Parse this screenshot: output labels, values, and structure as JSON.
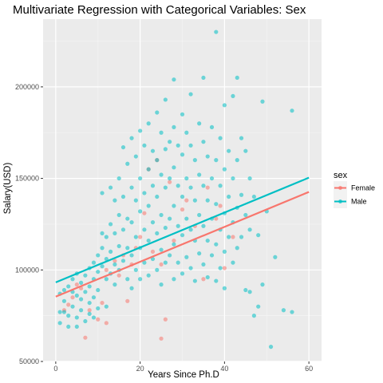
{
  "chart_data": {
    "type": "scatter",
    "title": "Multivariate Regression with Categorical Variables: Sex",
    "xlabel": "Years Since Ph.D",
    "ylabel": "Salary(USD)",
    "xlim": [
      -3,
      63
    ],
    "ylim": [
      50000,
      237000
    ],
    "x_ticks": [
      0,
      20,
      40,
      60
    ],
    "y_ticks": [
      50000,
      100000,
      150000,
      200000
    ],
    "x_tick_labels": [
      "0",
      "20",
      "40",
      "60"
    ],
    "y_tick_labels": [
      "50000",
      "100000",
      "150000",
      "200000"
    ],
    "grid": true,
    "legend": {
      "title": "sex",
      "position": "right",
      "entries": [
        "Female",
        "Male"
      ]
    },
    "series": [
      {
        "name": "Female",
        "color": "#F8766D",
        "fit_line": {
          "x": [
            0,
            60
          ],
          "y": [
            85400,
            142600
          ]
        },
        "points": [
          [
            2,
            78000
          ],
          [
            3,
            81000
          ],
          [
            4,
            85000
          ],
          [
            5,
            92000
          ],
          [
            6,
            90000
          ],
          [
            7,
            63000
          ],
          [
            8,
            78000
          ],
          [
            10,
            73000
          ],
          [
            11,
            82000
          ],
          [
            12,
            71000
          ],
          [
            12,
            100000
          ],
          [
            14,
            105000
          ],
          [
            15,
            97000
          ],
          [
            16,
            108000
          ],
          [
            17,
            83000
          ],
          [
            18,
            103000
          ],
          [
            19,
            112000
          ],
          [
            20,
            118000
          ],
          [
            21,
            131000
          ],
          [
            22,
            155000
          ],
          [
            23,
            110000
          ],
          [
            24,
            160000
          ],
          [
            25,
            103000
          ],
          [
            25,
            62500
          ],
          [
            26,
            73000
          ],
          [
            27,
            148000
          ],
          [
            28,
            116000
          ],
          [
            30,
            133000
          ],
          [
            31,
            138000
          ],
          [
            33,
            124000
          ],
          [
            35,
            95000
          ],
          [
            36,
            145000
          ],
          [
            38,
            128000
          ],
          [
            39,
            135000
          ],
          [
            40,
            101000
          ],
          [
            42,
            118000
          ]
        ]
      },
      {
        "name": "Male",
        "color": "#00BFC4",
        "fit_line": {
          "x": [
            0,
            60
          ],
          "y": [
            93200,
            150400
          ]
        },
        "points": [
          [
            1,
            87000
          ],
          [
            1,
            77000
          ],
          [
            1,
            71000
          ],
          [
            2,
            89000
          ],
          [
            2,
            83000
          ],
          [
            2,
            77000
          ],
          [
            3,
            91000
          ],
          [
            3,
            75000
          ],
          [
            3,
            69000
          ],
          [
            4,
            95000
          ],
          [
            4,
            88000
          ],
          [
            4,
            80000
          ],
          [
            5,
            98000
          ],
          [
            5,
            86000
          ],
          [
            5,
            74000
          ],
          [
            5,
            69000
          ],
          [
            6,
            93000
          ],
          [
            6,
            84000
          ],
          [
            6,
            78000
          ],
          [
            7,
            97000
          ],
          [
            7,
            88000
          ],
          [
            7,
            72000
          ],
          [
            8,
            101000
          ],
          [
            8,
            91000
          ],
          [
            8,
            82000
          ],
          [
            8,
            76000
          ],
          [
            9,
            104000
          ],
          [
            9,
            95000
          ],
          [
            9,
            85000
          ],
          [
            9,
            74000
          ],
          [
            10,
            108000
          ],
          [
            10,
            99000
          ],
          [
            10,
            89000
          ],
          [
            10,
            79000
          ],
          [
            11,
            120000
          ],
          [
            11,
            112000
          ],
          [
            11,
            102000
          ],
          [
            11,
            142000
          ],
          [
            12,
            118000
          ],
          [
            12,
            106000
          ],
          [
            12,
            95000
          ],
          [
            12,
            80000
          ],
          [
            13,
            145000
          ],
          [
            13,
            125000
          ],
          [
            13,
            110000
          ],
          [
            13,
            98000
          ],
          [
            14,
            138000
          ],
          [
            14,
            120000
          ],
          [
            14,
            103000
          ],
          [
            14,
            92000
          ],
          [
            15,
            150000
          ],
          [
            15,
            130000
          ],
          [
            15,
            113000
          ],
          [
            15,
            100000
          ],
          [
            16,
            167000
          ],
          [
            16,
            140000
          ],
          [
            16,
            122000
          ],
          [
            16,
            105000
          ],
          [
            17,
            158000
          ],
          [
            17,
            128000
          ],
          [
            17,
            112000
          ],
          [
            17,
            95000
          ],
          [
            18,
            172000
          ],
          [
            18,
            145000
          ],
          [
            18,
            126000
          ],
          [
            18,
            108000
          ],
          [
            18,
            90000
          ],
          [
            19,
            162000
          ],
          [
            19,
            138000
          ],
          [
            19,
            118000
          ],
          [
            19,
            100000
          ],
          [
            20,
            176000
          ],
          [
            20,
            150000
          ],
          [
            20,
            132000
          ],
          [
            20,
            112000
          ],
          [
            20,
            95000
          ],
          [
            21,
            168000
          ],
          [
            21,
            142000
          ],
          [
            21,
            122000
          ],
          [
            21,
            104000
          ],
          [
            22,
            180000
          ],
          [
            22,
            155000
          ],
          [
            22,
            135000
          ],
          [
            22,
            116000
          ],
          [
            22,
            97000
          ],
          [
            23,
            165000
          ],
          [
            23,
            146000
          ],
          [
            23,
            126000
          ],
          [
            23,
            106000
          ],
          [
            24,
            186000
          ],
          [
            24,
            160000
          ],
          [
            24,
            140000
          ],
          [
            24,
            120000
          ],
          [
            24,
            100000
          ],
          [
            25,
            175000
          ],
          [
            25,
            152000
          ],
          [
            25,
            130000
          ],
          [
            25,
            111000
          ],
          [
            25,
            92000
          ],
          [
            26,
            193000
          ],
          [
            26,
            166000
          ],
          [
            26,
            145000
          ],
          [
            26,
            123000
          ],
          [
            26,
            104000
          ],
          [
            27,
            170000
          ],
          [
            27,
            150000
          ],
          [
            27,
            128000
          ],
          [
            27,
            108000
          ],
          [
            28,
            204000
          ],
          [
            28,
            178000
          ],
          [
            28,
            156000
          ],
          [
            28,
            135000
          ],
          [
            28,
            114000
          ],
          [
            28,
            95000
          ],
          [
            29,
            168000
          ],
          [
            29,
            146000
          ],
          [
            29,
            124000
          ],
          [
            29,
            104000
          ],
          [
            30,
            185000
          ],
          [
            30,
            163000
          ],
          [
            30,
            140000
          ],
          [
            30,
            119000
          ],
          [
            30,
            98000
          ],
          [
            31,
            175000
          ],
          [
            31,
            150000
          ],
          [
            31,
            128000
          ],
          [
            31,
            107000
          ],
          [
            32,
            196000
          ],
          [
            32,
            168000
          ],
          [
            32,
            145000
          ],
          [
            32,
            122000
          ],
          [
            32,
            101000
          ],
          [
            33,
            160000
          ],
          [
            33,
            138000
          ],
          [
            33,
            116000
          ],
          [
            33,
            94000
          ],
          [
            34,
            180000
          ],
          [
            34,
            152000
          ],
          [
            34,
            130000
          ],
          [
            34,
            109000
          ],
          [
            35,
            205000
          ],
          [
            35,
            170000
          ],
          [
            35,
            146000
          ],
          [
            35,
            124000
          ],
          [
            35,
            103000
          ],
          [
            36,
            162000
          ],
          [
            36,
            138000
          ],
          [
            36,
            116000
          ],
          [
            36,
            96000
          ],
          [
            37,
            178000
          ],
          [
            37,
            150000
          ],
          [
            37,
            128000
          ],
          [
            37,
            108000
          ],
          [
            38,
            230000
          ],
          [
            38,
            160000
          ],
          [
            38,
            136000
          ],
          [
            38,
            114000
          ],
          [
            38,
            94000
          ],
          [
            39,
            172000
          ],
          [
            39,
            146000
          ],
          [
            39,
            122000
          ],
          [
            39,
            101000
          ],
          [
            40,
            190000
          ],
          [
            40,
            155000
          ],
          [
            40,
            131000
          ],
          [
            40,
            110000
          ],
          [
            40,
            90000
          ],
          [
            41,
            165000
          ],
          [
            41,
            140000
          ],
          [
            41,
            118000
          ],
          [
            42,
            195000
          ],
          [
            42,
            150000
          ],
          [
            42,
            126000
          ],
          [
            42,
            104000
          ],
          [
            43,
            205000
          ],
          [
            43,
            160000
          ],
          [
            43,
            134000
          ],
          [
            43,
            112000
          ],
          [
            44,
            172000
          ],
          [
            44,
            141000
          ],
          [
            44,
            118000
          ],
          [
            45,
            165000
          ],
          [
            45,
            130000
          ],
          [
            45,
            89000
          ],
          [
            46,
            150000
          ],
          [
            46,
            122000
          ],
          [
            46,
            88000
          ],
          [
            47,
            140000
          ],
          [
            47,
            75000
          ],
          [
            48,
            119000
          ],
          [
            48,
            80000
          ],
          [
            49,
            192000
          ],
          [
            49,
            92000
          ],
          [
            50,
            132000
          ],
          [
            51,
            58000
          ],
          [
            52,
            107000
          ],
          [
            54,
            78000
          ],
          [
            56,
            187000
          ],
          [
            56,
            77000
          ]
        ]
      }
    ]
  }
}
